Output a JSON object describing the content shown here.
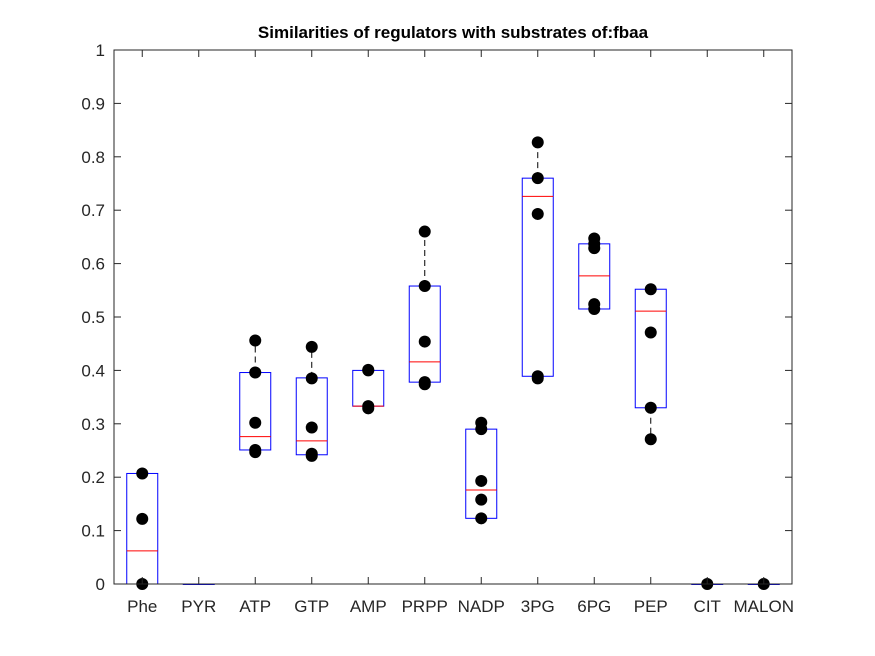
{
  "chart_data": {
    "type": "boxplot",
    "title": "Similarities of regulators with substrates of:fbaa",
    "xlabel": "",
    "ylabel": "",
    "ylim": [
      0,
      1
    ],
    "yticks": [
      "0",
      "0.1",
      "0.2",
      "0.3",
      "0.4",
      "0.5",
      "0.6",
      "0.7",
      "0.8",
      "0.9",
      "1"
    ],
    "categories": [
      "Phe",
      "PYR",
      "ATP",
      "GTP",
      "AMP",
      "PRPP",
      "NADP",
      "3PG",
      "6PG",
      "PEP",
      "CIT",
      "MALON"
    ],
    "boxes": [
      {
        "category": "Phe",
        "q1": 0.0,
        "median": 0.062,
        "q3": 0.207,
        "whisker_low": 0.0,
        "whisker_high": 0.207
      },
      {
        "category": "PYR",
        "q1": 0.0,
        "median": 0.0,
        "q3": 0.0,
        "whisker_low": 0.0,
        "whisker_high": 0.0
      },
      {
        "category": "ATP",
        "q1": 0.251,
        "median": 0.276,
        "q3": 0.396,
        "whisker_low": 0.247,
        "whisker_high": 0.456
      },
      {
        "category": "GTP",
        "q1": 0.242,
        "median": 0.268,
        "q3": 0.386,
        "whisker_low": 0.24,
        "whisker_high": 0.444
      },
      {
        "category": "AMP",
        "q1": 0.333,
        "median": 0.333,
        "q3": 0.4,
        "whisker_low": 0.329,
        "whisker_high": 0.401
      },
      {
        "category": "PRPP",
        "q1": 0.378,
        "median": 0.416,
        "q3": 0.558,
        "whisker_low": 0.374,
        "whisker_high": 0.66
      },
      {
        "category": "NADP",
        "q1": 0.123,
        "median": 0.176,
        "q3": 0.29,
        "whisker_low": 0.123,
        "whisker_high": 0.302
      },
      {
        "category": "3PG",
        "q1": 0.389,
        "median": 0.726,
        "q3": 0.76,
        "whisker_low": 0.385,
        "whisker_high": 0.827
      },
      {
        "category": "6PG",
        "q1": 0.515,
        "median": 0.577,
        "q3": 0.637,
        "whisker_low": 0.515,
        "whisker_high": 0.647
      },
      {
        "category": "PEP",
        "q1": 0.33,
        "median": 0.511,
        "q3": 0.552,
        "whisker_low": 0.271,
        "whisker_high": 0.552
      },
      {
        "category": "CIT",
        "q1": 0.0,
        "median": 0.0,
        "q3": 0.0,
        "whisker_low": 0.0,
        "whisker_high": 0.0
      },
      {
        "category": "MALON",
        "q1": 0.0,
        "median": 0.0,
        "q3": 0.0,
        "whisker_low": 0.0,
        "whisker_high": 0.0
      }
    ],
    "points": [
      {
        "category": "Phe",
        "values": [
          0.0,
          0.122,
          0.207
        ]
      },
      {
        "category": "PYR",
        "values": []
      },
      {
        "category": "ATP",
        "values": [
          0.247,
          0.251,
          0.302,
          0.396,
          0.456
        ]
      },
      {
        "category": "GTP",
        "values": [
          0.24,
          0.244,
          0.293,
          0.385,
          0.444
        ]
      },
      {
        "category": "AMP",
        "values": [
          0.329,
          0.333,
          0.4,
          0.401
        ]
      },
      {
        "category": "PRPP",
        "values": [
          0.374,
          0.378,
          0.454,
          0.558,
          0.66
        ]
      },
      {
        "category": "NADP",
        "values": [
          0.123,
          0.158,
          0.193,
          0.29,
          0.302
        ]
      },
      {
        "category": "3PG",
        "values": [
          0.385,
          0.389,
          0.693,
          0.76,
          0.827
        ]
      },
      {
        "category": "6PG",
        "values": [
          0.515,
          0.524,
          0.629,
          0.637,
          0.647
        ]
      },
      {
        "category": "PEP",
        "values": [
          0.271,
          0.33,
          0.471,
          0.552
        ]
      },
      {
        "category": "CIT",
        "values": [
          0.0
        ]
      },
      {
        "category": "MALON",
        "values": [
          0.0
        ]
      }
    ],
    "grid": false,
    "colors": {
      "box": "#0000ff",
      "median": "#ff0000",
      "whisker": "#000000",
      "point": "#000000",
      "axis": "#262626"
    }
  }
}
